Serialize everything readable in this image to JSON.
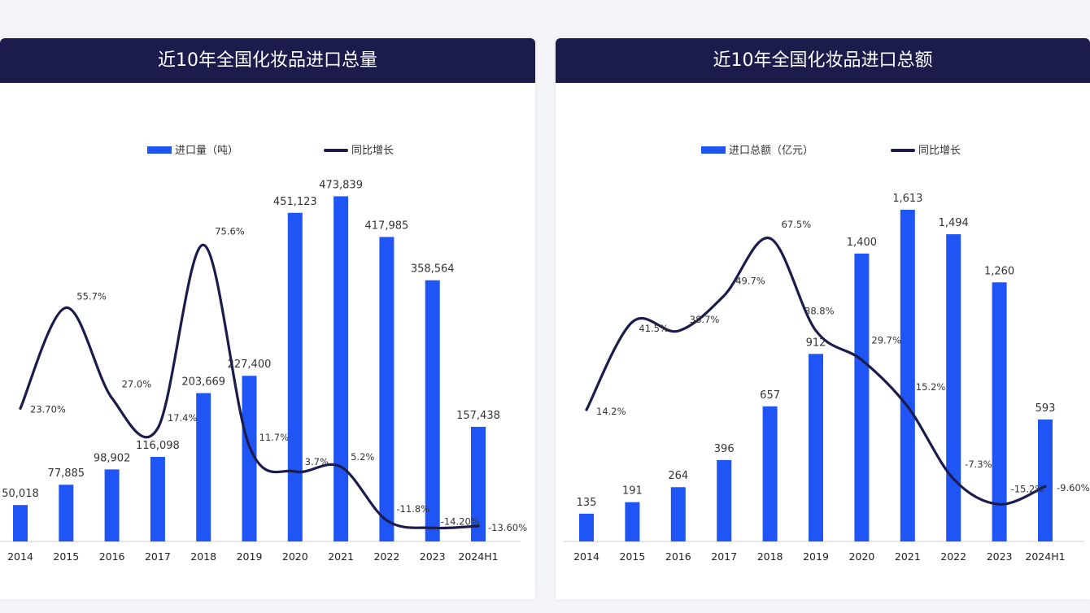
{
  "chart_data": [
    {
      "type": "bar",
      "title": "近10年全国化妆品进口总量",
      "categories": [
        "2014",
        "2015",
        "2016",
        "2017",
        "2018",
        "2019",
        "2020",
        "2021",
        "2022",
        "2023",
        "2024H1"
      ],
      "series": [
        {
          "name": "进口量（吨）",
          "type": "bar",
          "values": [
            50018,
            77885,
            98902,
            116098,
            203669,
            227400,
            451123,
            473839,
            417985,
            358564,
            157438
          ],
          "labels": [
            "50,018",
            "77,885",
            "98,902",
            "116,098",
            "203,669",
            "227,400",
            "451,123",
            "473,839",
            "417,985",
            "358,564",
            "157,438"
          ]
        },
        {
          "name": "同比增长",
          "type": "line",
          "values": [
            23.7,
            55.7,
            27.0,
            17.4,
            75.6,
            11.7,
            3.7,
            5.2,
            -11.8,
            -14.2,
            -13.6
          ],
          "labels": [
            "23.70%",
            "55.7%",
            "27.0%",
            "17.4%",
            "75.6%",
            "11.7%",
            "3.7%",
            "5.2%",
            "-11.8%",
            "-14.20%",
            "-13.60%"
          ]
        }
      ],
      "ylim": [
        0,
        500000
      ],
      "legend": "top-center"
    },
    {
      "type": "bar",
      "title": "近10年全国化妆品进口总额",
      "categories": [
        "2014",
        "2015",
        "2016",
        "2017",
        "2018",
        "2019",
        "2020",
        "2021",
        "2022",
        "2023",
        "2024H1"
      ],
      "series": [
        {
          "name": "进口总额（亿元）",
          "type": "bar",
          "values": [
            135,
            191,
            264,
            396,
            657,
            912,
            1400,
            1613,
            1494,
            1260,
            593
          ],
          "labels": [
            "135",
            "191",
            "264",
            "396",
            "657",
            "912",
            "1,400",
            "1,613",
            "1,494",
            "1,260",
            "593"
          ]
        },
        {
          "name": "同比增长",
          "type": "line",
          "values": [
            14.2,
            41.5,
            38.7,
            49.7,
            67.5,
            38.8,
            29.7,
            15.2,
            -7.3,
            -15.2,
            -9.6
          ],
          "labels": [
            "14.2%",
            "41.5%",
            "38.7%",
            "49.7%",
            "67.5%",
            "38.8%",
            "29.7%",
            "15.2%",
            "-7.3%",
            "-15.2%",
            "-9.60%"
          ]
        }
      ],
      "ylim": [
        0,
        1700
      ],
      "legend": "top-center"
    }
  ],
  "colors": {
    "bar": "#1f55f5",
    "line": "#1b1c4c",
    "header": "#1b1c4c"
  }
}
